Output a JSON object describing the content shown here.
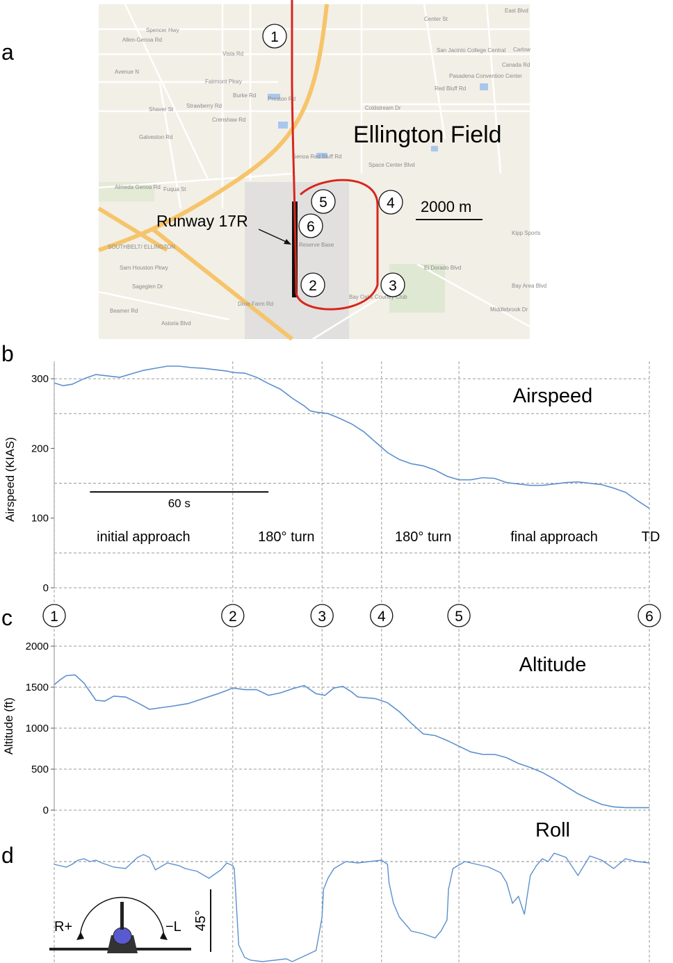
{
  "panels": {
    "a": "a",
    "b": "b",
    "c": "c",
    "d": "d"
  },
  "map": {
    "title": "Ellington Field",
    "runway_label": "Runway 17R",
    "scale_label": "2000 m",
    "road_labels": [
      "Spencer Hwy",
      "Vista Rd",
      "Fairmont Pkwy",
      "Avenue N",
      "Crenshaw Rd",
      "Coldstream Dr",
      "Genoa Red Bluff Rd",
      "Almeda Genoa Rd",
      "Fuqua St",
      "Sam Houston Pkwy",
      "Space Center Blvd",
      "Bay Oaks Country Club",
      "San Jacinto College Central",
      "Pasadena Convention Center",
      "Kipp Sports",
      "SOUTHBELT/ ELLINGTON",
      "Reserve Base",
      "El Dorado Blvd",
      "Middlebrook Dr",
      "Red Bluff Rd",
      "Astoria Blvd",
      "Dixie Farm Rd",
      "Beamer Rd",
      "Sageglen Dr",
      "Preston Rd",
      "Burke Rd",
      "Strawberry Rd",
      "Galveston Rd",
      "Shaver St",
      "Allen-Genoa Rd",
      "Bay Area Blvd",
      "Carlow",
      "Center St",
      "East Blvd",
      "Canada Rd"
    ],
    "waypoints": [
      "1",
      "2",
      "3",
      "4",
      "5",
      "6"
    ]
  },
  "chart_data": [
    {
      "type": "line",
      "name": "airspeed",
      "title": "Airspeed",
      "ylabel": "Airspeed (KIAS)",
      "xlabel": "",
      "xlim": [
        0,
        200
      ],
      "ylim": [
        0,
        320
      ],
      "yticks": [
        0,
        100,
        200,
        300
      ],
      "grid_y": [
        0,
        50,
        150,
        250,
        300
      ],
      "grid": true,
      "scale_bar_label": "60 s",
      "scale_bar_seconds": 60,
      "phases": [
        {
          "label": "initial approach",
          "x": 30
        },
        {
          "label": "180° turn",
          "x": 78
        },
        {
          "label": "180° turn",
          "x": 124
        },
        {
          "label": "final approach",
          "x": 168
        },
        {
          "label": "TD",
          "x": 202
        }
      ],
      "x": [
        0,
        3,
        6,
        10,
        14,
        18,
        22,
        26,
        30,
        34,
        38,
        42,
        46,
        50,
        54,
        58,
        60,
        64,
        68,
        72,
        76,
        80,
        84,
        86,
        88,
        92,
        96,
        100,
        104,
        108,
        112,
        116,
        120,
        124,
        128,
        132,
        136,
        140,
        144,
        148,
        152,
        156,
        160,
        164,
        168,
        172,
        176,
        180,
        184,
        188,
        192,
        196,
        200
      ],
      "values": [
        294,
        290,
        292,
        300,
        306,
        304,
        302,
        307,
        312,
        315,
        318,
        318,
        316,
        315,
        313,
        311,
        309,
        308,
        302,
        293,
        285,
        272,
        261,
        254,
        252,
        250,
        243,
        235,
        224,
        209,
        194,
        184,
        178,
        175,
        169,
        160,
        155,
        155,
        158,
        157,
        151,
        149,
        147,
        147,
        149,
        151,
        152,
        150,
        148,
        143,
        137,
        125,
        114
      ]
    },
    {
      "type": "line",
      "name": "altitude",
      "title": "Altitude",
      "ylabel": "Altitude (ft)",
      "xlabel": "",
      "xlim": [
        0,
        200
      ],
      "ylim": [
        0,
        2000
      ],
      "yticks": [
        0,
        500,
        1000,
        1500,
        2000
      ],
      "grid": true,
      "x": [
        0,
        2,
        4,
        7,
        10,
        14,
        17,
        20,
        24,
        28,
        32,
        36,
        40,
        45,
        50,
        55,
        58,
        60,
        64,
        68,
        72,
        76,
        80,
        84,
        88,
        91,
        94,
        97,
        100,
        102,
        105,
        108,
        112,
        116,
        120,
        124,
        128,
        132,
        136,
        140,
        144,
        148,
        152,
        156,
        160,
        164,
        168,
        172,
        176,
        180,
        184,
        188,
        192,
        196,
        200
      ],
      "values": [
        1530,
        1590,
        1640,
        1650,
        1550,
        1340,
        1330,
        1390,
        1380,
        1310,
        1230,
        1250,
        1270,
        1300,
        1360,
        1420,
        1460,
        1490,
        1470,
        1470,
        1400,
        1430,
        1480,
        1520,
        1420,
        1400,
        1490,
        1510,
        1440,
        1380,
        1370,
        1360,
        1310,
        1200,
        1060,
        930,
        910,
        850,
        780,
        710,
        680,
        680,
        640,
        570,
        520,
        460,
        380,
        290,
        200,
        130,
        70,
        40,
        30,
        30,
        30
      ]
    },
    {
      "type": "line",
      "name": "roll",
      "title": "Roll",
      "ylabel": "",
      "xlabel": "",
      "xlim": [
        0,
        200
      ],
      "ylim": [
        -70,
        10
      ],
      "scale_bar_label": "45°",
      "scale_bar_degrees": 45,
      "direction_labels": {
        "right": "R+",
        "left": "−L"
      },
      "x": [
        0,
        2,
        4,
        6,
        8,
        10,
        12,
        14,
        16,
        20,
        24,
        28,
        30,
        32,
        34,
        38,
        42,
        44,
        48,
        52,
        56,
        58,
        60,
        60.5,
        62,
        64,
        66,
        70,
        74,
        78,
        80,
        84,
        88,
        90,
        90.5,
        92,
        94,
        98,
        102,
        106,
        110,
        112,
        112.5,
        114,
        116,
        120,
        124,
        128,
        130,
        132,
        132.5,
        134,
        138,
        142,
        146,
        150,
        152,
        154,
        156,
        158,
        160,
        162,
        164,
        166,
        168,
        172,
        176,
        180,
        184,
        188,
        192,
        196,
        200
      ],
      "values": [
        -2,
        -3,
        -4,
        -2,
        1,
        2,
        0,
        1,
        -1,
        -4,
        -5,
        3,
        5,
        3,
        -6,
        -1,
        -3,
        -5,
        -7,
        -12,
        -6,
        -1,
        -3,
        -5,
        -60,
        -69,
        -71,
        -72,
        -71,
        -70,
        -72,
        -68,
        -64,
        -40,
        -20,
        -12,
        -5,
        0,
        -1,
        0,
        1,
        -2,
        -15,
        -30,
        -40,
        -50,
        -52,
        -55,
        -50,
        -42,
        -20,
        -5,
        0,
        -2,
        -4,
        -8,
        -15,
        -30,
        -25,
        -38,
        -10,
        -3,
        2,
        0,
        6,
        3,
        -10,
        4,
        1,
        -5,
        2,
        0,
        -1
      ]
    }
  ]
}
